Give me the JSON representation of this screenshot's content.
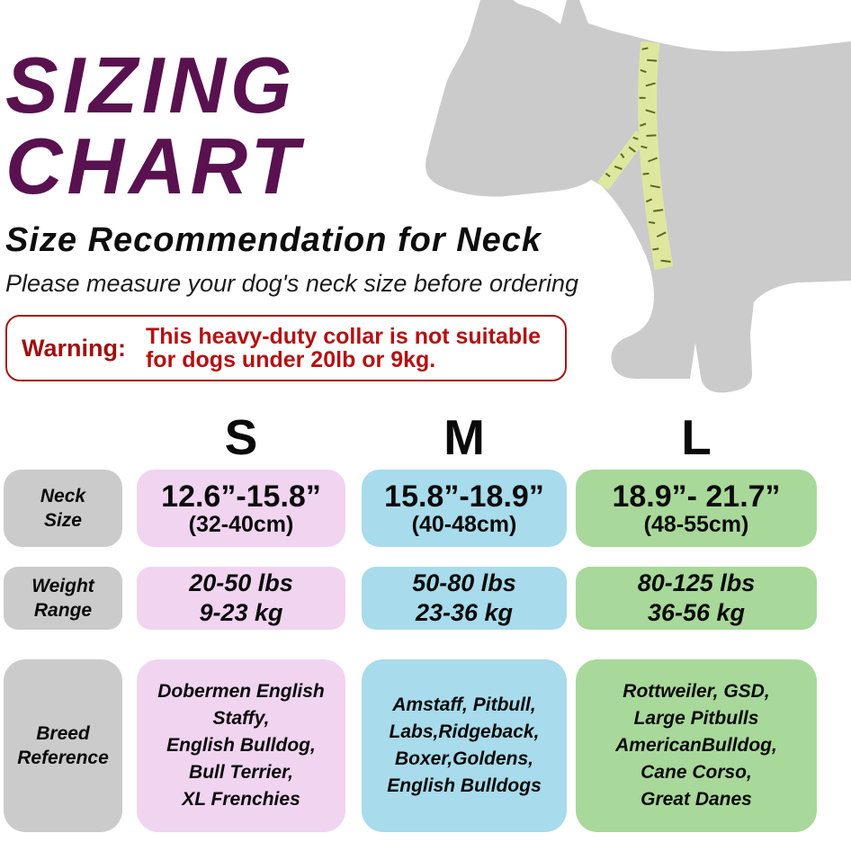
{
  "header": {
    "title_line1": "SIZING",
    "title_line2": "CHART",
    "subtitle": "Size Recommendation for Neck",
    "tagline": "Please measure your dog's neck size before ordering"
  },
  "warning": {
    "label": "Warning:",
    "text": "This heavy-duty collar is not suitable\nfor dogs under 20lb or 9kg."
  },
  "illustration": {
    "dog_icon": "dog-silhouette",
    "tape_icon": "measuring-tape-around-neck"
  },
  "table": {
    "row_labels": [
      "Neck\nSize",
      "Weight\nRange",
      "Breed\nReference"
    ],
    "columns": [
      {
        "size": "S",
        "neck_in": "12.6”-15.8”",
        "neck_cm": "(32-40cm)",
        "weight": "20-50 lbs\n9-23 kg",
        "breeds": "Dobermen English\nStaffy,\nEnglish Bulldog,\nBull Terrier,\nXL Frenchies"
      },
      {
        "size": "M",
        "neck_in": "15.8”-18.9”",
        "neck_cm": "(40-48cm)",
        "weight": "50-80 lbs\n23-36 kg",
        "breeds": "Amstaff, Pitbull,\nLabs,Ridgeback,\nBoxer,Goldens,\nEnglish Bulldogs"
      },
      {
        "size": "L",
        "neck_in": "18.9”- 21.7”",
        "neck_cm": "(48-55cm)",
        "weight": "80-125 lbs\n36-56 kg",
        "breeds": "Rottweiler, GSD,\nLarge Pitbulls\nAmericanBulldog,\nCane Corso,\nGreat Danes"
      }
    ]
  },
  "chart_data": {
    "type": "table",
    "title": "SIZING CHART — Size Recommendation for Neck",
    "columns": [
      "",
      "S",
      "M",
      "L"
    ],
    "rows": [
      [
        "Neck Size",
        "12.6\"-15.8\" (32-40cm)",
        "15.8\"-18.9\" (40-48cm)",
        "18.9\"-21.7\" (48-55cm)"
      ],
      [
        "Weight Range",
        "20-50 lbs / 9-23 kg",
        "50-80 lbs / 23-36 kg",
        "80-125 lbs / 36-56 kg"
      ],
      [
        "Breed Reference",
        "Dobermen English Staffy, English Bulldog, Bull Terrier, XL Frenchies",
        "Amstaff, Pitbull, Labs, Ridgeback, Boxer, Goldens, English Bulldogs",
        "Rottweiler, GSD, Large Pitbulls, AmericanBulldog, Cane Corso, Great Danes"
      ]
    ]
  },
  "colors": {
    "title": "#591150",
    "warning_border": "#a61414",
    "warning_label": "#a00f0f",
    "warning_text": "#b31212",
    "cell_s": "#f0d4f0",
    "cell_m": "#a8dbeb",
    "cell_l": "#a8d89a",
    "label_bg": "#cbcbcb",
    "dog": "#cbcbcb",
    "tape": "#dde89e",
    "tape_tick": "#5c6823"
  }
}
